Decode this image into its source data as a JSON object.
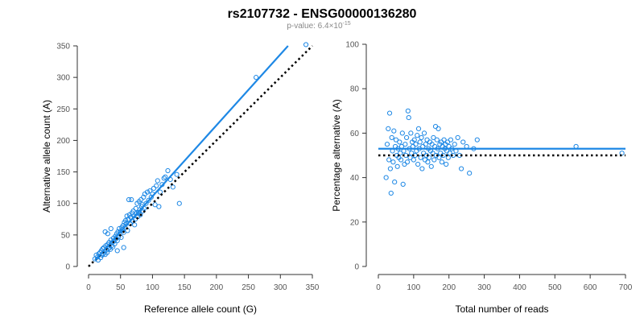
{
  "figure": {
    "title": "rs2107732 - ENSG00000136280",
    "subtitle_prefix": "p-value: 6.4×10",
    "subtitle_exponent": "-15",
    "point_color": "#1e88e5",
    "fit_color": "#1e88e5",
    "reference_color": "#000000"
  },
  "chart_data": [
    {
      "type": "scatter",
      "xlabel": "Reference allele count (G)",
      "ylabel": "Alternative allele count (A)",
      "xlim": [
        0,
        350
      ],
      "ylim": [
        0,
        350
      ],
      "xticks": [
        "0",
        "50",
        "100",
        "150",
        "200",
        "250",
        "300",
        "350"
      ],
      "yticks": [
        "0",
        "50",
        "100",
        "150",
        "200",
        "250",
        "300",
        "350"
      ],
      "grid": false,
      "fit_line": {
        "x": [
          10,
          312
        ],
        "y": [
          10,
          350
        ]
      },
      "reference_line": {
        "x": [
          0,
          350
        ],
        "y": [
          0,
          350
        ]
      },
      "points": [
        [
          10,
          12
        ],
        [
          12,
          18
        ],
        [
          14,
          15
        ],
        [
          15,
          10
        ],
        [
          16,
          20
        ],
        [
          18,
          22
        ],
        [
          19,
          14
        ],
        [
          20,
          25
        ],
        [
          21,
          18
        ],
        [
          22,
          28
        ],
        [
          23,
          20
        ],
        [
          24,
          30
        ],
        [
          25,
          24
        ],
        [
          26,
          19
        ],
        [
          27,
          33
        ],
        [
          28,
          26
        ],
        [
          29,
          22
        ],
        [
          30,
          35
        ],
        [
          31,
          28
        ],
        [
          32,
          38
        ],
        [
          33,
          30
        ],
        [
          34,
          27
        ],
        [
          35,
          42
        ],
        [
          36,
          33
        ],
        [
          37,
          38
        ],
        [
          38,
          31
        ],
        [
          39,
          45
        ],
        [
          40,
          40
        ],
        [
          41,
          36
        ],
        [
          42,
          48
        ],
        [
          43,
          44
        ],
        [
          44,
          52
        ],
        [
          45,
          41
        ],
        [
          46,
          55
        ],
        [
          47,
          47
        ],
        [
          48,
          60
        ],
        [
          49,
          52
        ],
        [
          50,
          56
        ],
        [
          51,
          46
        ],
        [
          52,
          62
        ],
        [
          53,
          58
        ],
        [
          54,
          65
        ],
        [
          55,
          54
        ],
        [
          56,
          70
        ],
        [
          57,
          62
        ],
        [
          58,
          73
        ],
        [
          59,
          68
        ],
        [
          60,
          80
        ],
        [
          61,
          57
        ],
        [
          62,
          75
        ],
        [
          63,
          106
        ],
        [
          64,
          82
        ],
        [
          65,
          68
        ],
        [
          66,
          78
        ],
        [
          67,
          106
        ],
        [
          68,
          85
        ],
        [
          69,
          72
        ],
        [
          70,
          88
        ],
        [
          71,
          80
        ],
        [
          72,
          66
        ],
        [
          73,
          75
        ],
        [
          74,
          92
        ],
        [
          75,
          84
        ],
        [
          76,
          100
        ],
        [
          77,
          79
        ],
        [
          78,
          86
        ],
        [
          79,
          103
        ],
        [
          80,
          90
        ],
        [
          81,
          82
        ],
        [
          82,
          106
        ],
        [
          83,
          95
        ],
        [
          84,
          98
        ],
        [
          85,
          88
        ],
        [
          86,
          110
        ],
        [
          87,
          92
        ],
        [
          88,
          115
        ],
        [
          90,
          100
        ],
        [
          92,
          118
        ],
        [
          94,
          105
        ],
        [
          96,
          120
        ],
        [
          98,
          110
        ],
        [
          100,
          115
        ],
        [
          102,
          124
        ],
        [
          104,
          98
        ],
        [
          106,
          128
        ],
        [
          108,
          136
        ],
        [
          110,
          95
        ],
        [
          112,
          118
        ],
        [
          115,
          130
        ],
        [
          118,
          140
        ],
        [
          120,
          142
        ],
        [
          124,
          152
        ],
        [
          128,
          138
        ],
        [
          132,
          126
        ],
        [
          138,
          146
        ],
        [
          142,
          100
        ],
        [
          26,
          55
        ],
        [
          30,
          52
        ],
        [
          35,
          60
        ],
        [
          45,
          25
        ],
        [
          55,
          30
        ],
        [
          262,
          300
        ],
        [
          340,
          352
        ]
      ]
    },
    {
      "type": "scatter",
      "xlabel": "Total number of reads",
      "ylabel": "Percentage alternative (A)",
      "xlim": [
        0,
        700
      ],
      "ylim": [
        0,
        100
      ],
      "xticks": [
        "0",
        "100",
        "200",
        "300",
        "400",
        "500",
        "600",
        "700"
      ],
      "yticks": [
        "0",
        "20",
        "40",
        "60",
        "80",
        "100"
      ],
      "grid": false,
      "fit_line": {
        "x": [
          0,
          700
        ],
        "y": [
          53,
          53
        ]
      },
      "reference_line": {
        "x": [
          0,
          700
        ],
        "y": [
          50,
          50
        ]
      },
      "points": [
        [
          22,
          40
        ],
        [
          25,
          55
        ],
        [
          28,
          62
        ],
        [
          30,
          48
        ],
        [
          32,
          69
        ],
        [
          34,
          44
        ],
        [
          36,
          33
        ],
        [
          38,
          58
        ],
        [
          40,
          52
        ],
        [
          42,
          47
        ],
        [
          44,
          61
        ],
        [
          46,
          38
        ],
        [
          48,
          54
        ],
        [
          50,
          57
        ],
        [
          52,
          50
        ],
        [
          54,
          45
        ],
        [
          56,
          53
        ],
        [
          58,
          49
        ],
        [
          60,
          56
        ],
        [
          62,
          51
        ],
        [
          64,
          48
        ],
        [
          66,
          54
        ],
        [
          68,
          60
        ],
        [
          70,
          37
        ],
        [
          72,
          52
        ],
        [
          74,
          46
        ],
        [
          76,
          55
        ],
        [
          78,
          50
        ],
        [
          80,
          58
        ],
        [
          82,
          47
        ],
        [
          84,
          70
        ],
        [
          86,
          67
        ],
        [
          88,
          53
        ],
        [
          90,
          49
        ],
        [
          92,
          60
        ],
        [
          94,
          51
        ],
        [
          96,
          56
        ],
        [
          98,
          54
        ],
        [
          100,
          48
        ],
        [
          102,
          57
        ],
        [
          104,
          50
        ],
        [
          106,
          55
        ],
        [
          108,
          52
        ],
        [
          110,
          59
        ],
        [
          112,
          46
        ],
        [
          114,
          62
        ],
        [
          116,
          53
        ],
        [
          118,
          56
        ],
        [
          120,
          49
        ],
        [
          122,
          58
        ],
        [
          124,
          44
        ],
        [
          126,
          54
        ],
        [
          128,
          51
        ],
        [
          130,
          60
        ],
        [
          132,
          48
        ],
        [
          134,
          55
        ],
        [
          136,
          50
        ],
        [
          138,
          57
        ],
        [
          140,
          47
        ],
        [
          142,
          53
        ],
        [
          144,
          49
        ],
        [
          146,
          56
        ],
        [
          148,
          52
        ],
        [
          150,
          45
        ],
        [
          152,
          55
        ],
        [
          154,
          51
        ],
        [
          156,
          58
        ],
        [
          158,
          48
        ],
        [
          160,
          54
        ],
        [
          162,
          63
        ],
        [
          164,
          50
        ],
        [
          166,
          57
        ],
        [
          168,
          53
        ],
        [
          170,
          62
        ],
        [
          172,
          49
        ],
        [
          174,
          55
        ],
        [
          176,
          51
        ],
        [
          178,
          56
        ],
        [
          180,
          47
        ],
        [
          182,
          54
        ],
        [
          184,
          50
        ],
        [
          186,
          57
        ],
        [
          188,
          53
        ],
        [
          190,
          55
        ],
        [
          192,
          46
        ],
        [
          194,
          52
        ],
        [
          196,
          56
        ],
        [
          198,
          49
        ],
        [
          200,
          54
        ],
        [
          202,
          51
        ],
        [
          205,
          57
        ],
        [
          208,
          53
        ],
        [
          212,
          50
        ],
        [
          216,
          55
        ],
        [
          220,
          52
        ],
        [
          225,
          58
        ],
        [
          230,
          50
        ],
        [
          235,
          44
        ],
        [
          240,
          56
        ],
        [
          250,
          54
        ],
        [
          258,
          42
        ],
        [
          270,
          53
        ],
        [
          280,
          57
        ],
        [
          560,
          54
        ],
        [
          690,
          51
        ]
      ]
    }
  ]
}
